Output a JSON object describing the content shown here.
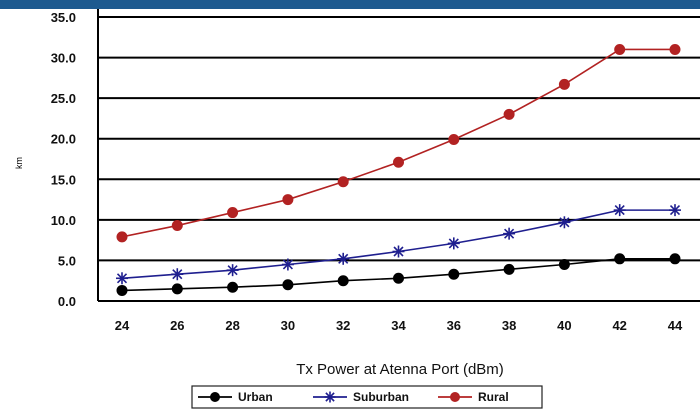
{
  "chart_data": {
    "type": "line",
    "x": [
      24,
      26,
      28,
      30,
      32,
      34,
      36,
      38,
      40,
      42,
      44
    ],
    "xticks": [
      "24",
      "26",
      "28",
      "30",
      "32",
      "34",
      "36",
      "38",
      "40",
      "42",
      "44"
    ],
    "xlabel": "Tx Power at Atenna Port (dBm)",
    "ylabel": "km",
    "ylim": [
      0,
      35
    ],
    "yticks": [
      "0.0",
      "5.0",
      "10.0",
      "15.0",
      "20.0",
      "25.0",
      "30.0",
      "35.0"
    ],
    "grid": true,
    "legend_position": "bottom",
    "series": [
      {
        "name": "Urban",
        "color": "#000000",
        "marker": "circle",
        "values": [
          1.3,
          1.5,
          1.7,
          2.0,
          2.5,
          2.8,
          3.3,
          3.9,
          4.5,
          5.2,
          5.2
        ]
      },
      {
        "name": "Suburban",
        "color": "#1f1f8f",
        "marker": "star",
        "values": [
          2.8,
          3.3,
          3.8,
          4.5,
          5.2,
          6.1,
          7.1,
          8.3,
          9.7,
          11.2,
          11.2
        ]
      },
      {
        "name": "Rural",
        "color": "#b22222",
        "marker": "circle",
        "values": [
          7.9,
          9.3,
          10.9,
          12.5,
          14.7,
          17.1,
          19.9,
          23.0,
          26.7,
          31.0,
          31.0
        ]
      }
    ]
  }
}
